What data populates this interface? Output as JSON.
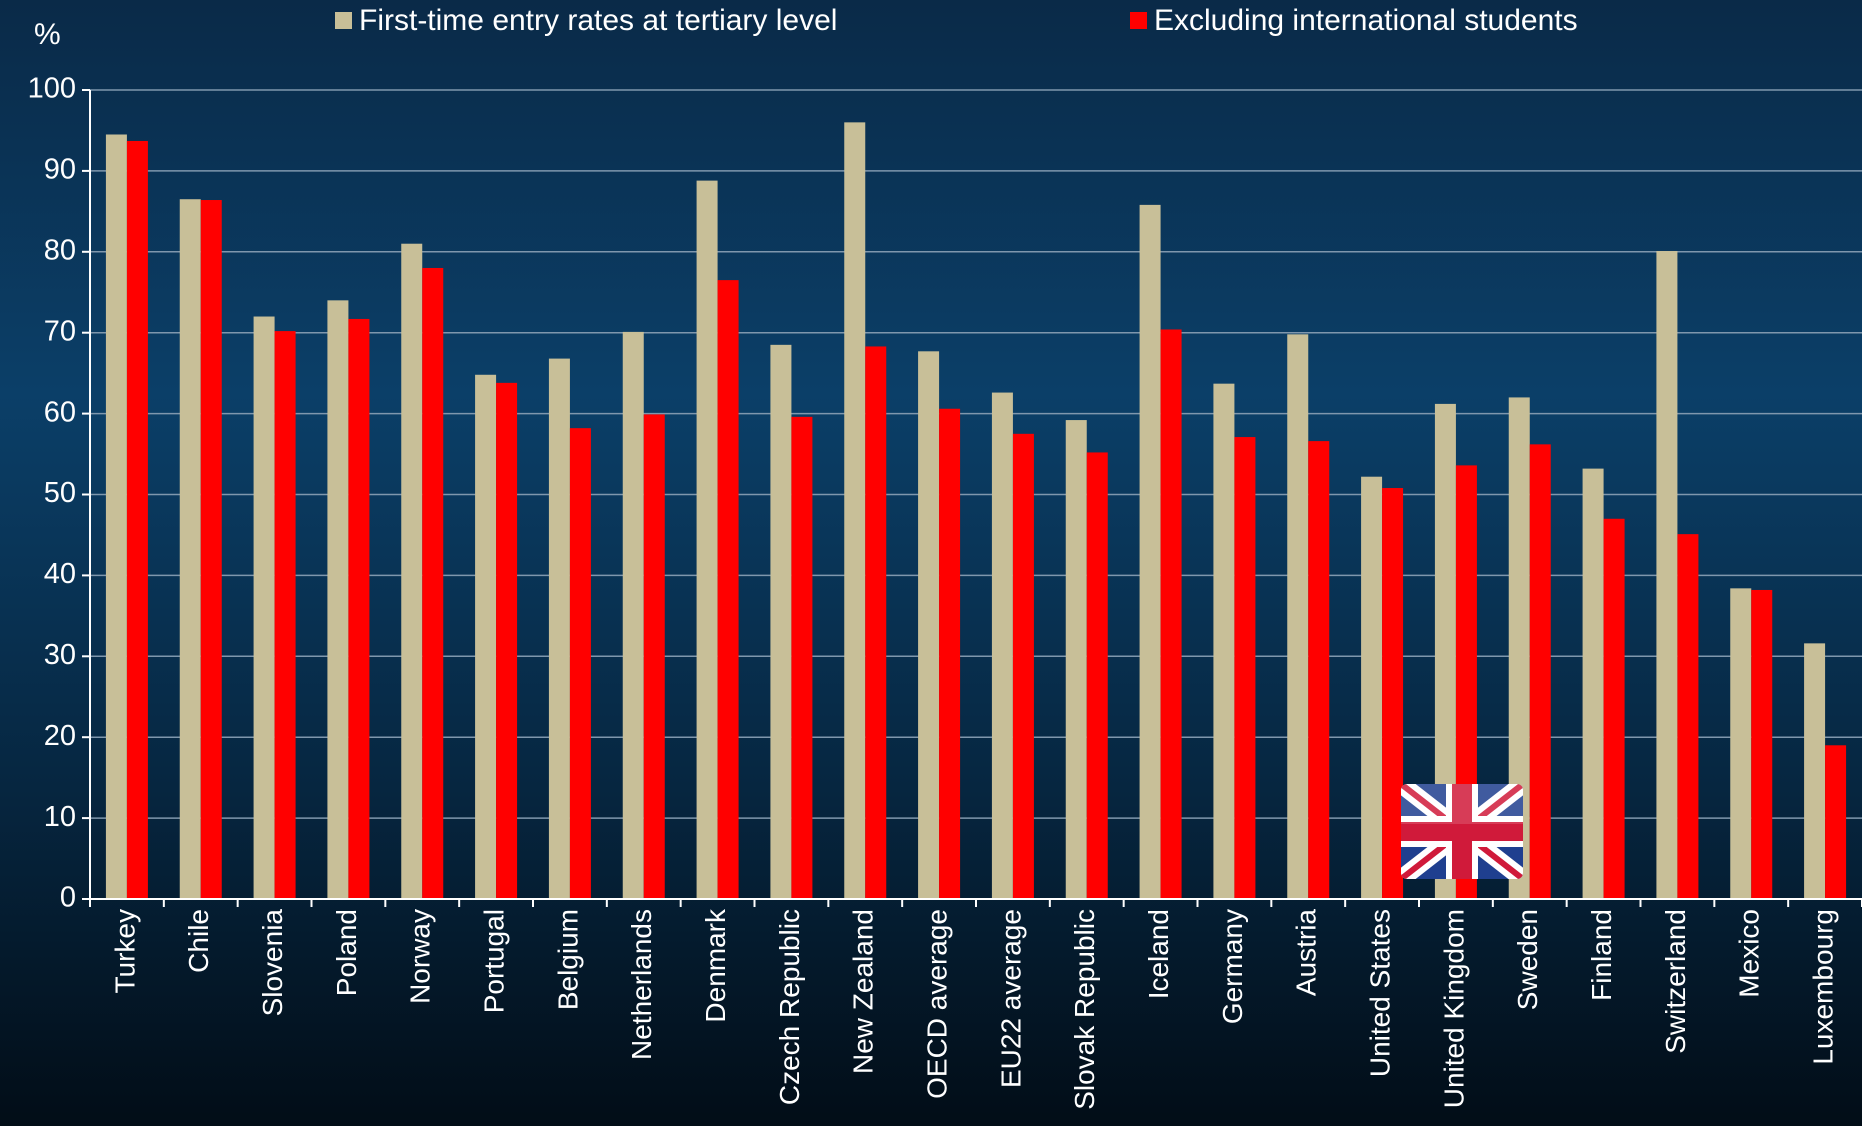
{
  "chart_data": {
    "type": "bar",
    "y_label": "%",
    "categories": [
      "Turkey",
      "Chile",
      "Slovenia",
      "Poland",
      "Norway",
      "Portugal",
      "Belgium",
      "Netherlands",
      "Denmark",
      "Czech Republic",
      "New Zealand",
      "OECD average",
      "EU22 average",
      "Slovak Republic",
      "Iceland",
      "Germany",
      "Austria",
      "United States",
      "United Kingdom",
      "Sweden",
      "Finland",
      "Switzerland",
      "Mexico",
      "Luxembourg"
    ],
    "series": [
      {
        "name": "First-time entry rates at tertiary level",
        "color": "#c8bf98",
        "values": [
          94.5,
          86.5,
          72,
          74,
          81,
          64.8,
          66.8,
          70.1,
          88.8,
          68.5,
          96,
          67.7,
          62.6,
          59.2,
          85.8,
          63.7,
          69.8,
          52.2,
          61.2,
          62,
          53.2,
          80.1,
          38.4,
          31.6
        ]
      },
      {
        "name": "Excluding international students",
        "color": "#ff0000",
        "values": [
          93.7,
          86.4,
          70.2,
          71.7,
          78,
          63.8,
          58.2,
          59.9,
          76.5,
          59.6,
          68.3,
          60.6,
          57.5,
          55.2,
          70.4,
          57.1,
          56.6,
          50.8,
          53.6,
          56.2,
          47,
          45.1,
          38.2,
          19
        ]
      }
    ],
    "ylim": [
      0,
      100
    ],
    "yticks": [
      0,
      10,
      20,
      30,
      40,
      50,
      60,
      70,
      80,
      90,
      100
    ],
    "grid": true
  }
}
